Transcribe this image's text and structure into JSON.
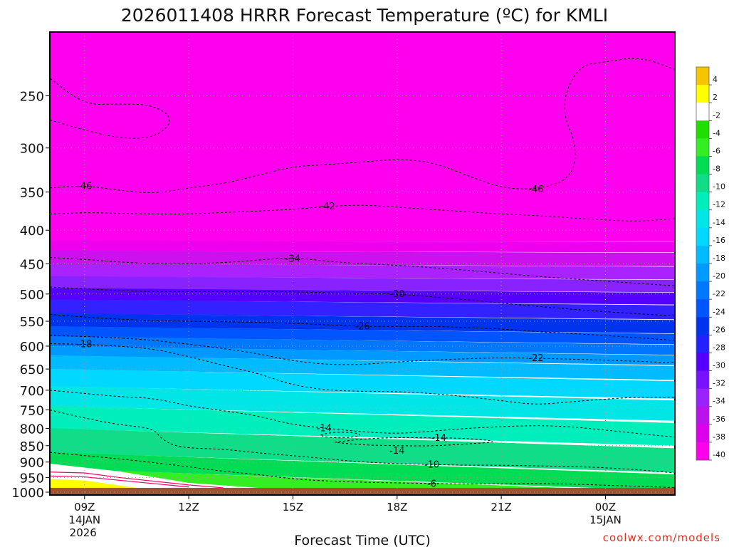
{
  "chart_data": {
    "type": "heatmap",
    "title": "2026011408 HRRR Forecast Temperature (ºC) for KMLI",
    "xlabel": "Forecast Time (UTC)",
    "ylabel": "",
    "units": "ºC",
    "x_ticks": [
      {
        "hour": 9,
        "label": "09Z",
        "date": "14JAN",
        "year": "2026"
      },
      {
        "hour": 12,
        "label": "12Z",
        "date": "",
        "year": ""
      },
      {
        "hour": 15,
        "label": "15Z",
        "date": "",
        "year": ""
      },
      {
        "hour": 18,
        "label": "18Z",
        "date": "",
        "year": ""
      },
      {
        "hour": 21,
        "label": "21Z",
        "date": "",
        "year": ""
      },
      {
        "hour": 24,
        "label": "00Z",
        "date": "15JAN",
        "year": ""
      }
    ],
    "xlim": [
      8,
      26
    ],
    "y_ticks": [
      250,
      300,
      350,
      400,
      450,
      500,
      550,
      600,
      650,
      700,
      750,
      800,
      850,
      900,
      950,
      1000
    ],
    "ylim": [
      200,
      1010
    ],
    "yscale": "log-pressure",
    "ground_pressure": 985,
    "contours": [
      {
        "level": -46,
        "label": "-46",
        "points": [
          [
            8,
            345
          ],
          [
            9,
            342
          ],
          [
            10,
            348
          ],
          [
            11,
            352
          ],
          [
            12,
            345
          ],
          [
            13,
            340
          ],
          [
            14,
            330
          ],
          [
            15,
            320
          ],
          [
            16,
            318
          ],
          [
            17,
            315
          ],
          [
            18,
            312
          ],
          [
            19,
            315
          ],
          [
            20,
            330
          ],
          [
            21,
            345
          ],
          [
            22,
            347
          ],
          [
            23,
            335
          ],
          [
            23.2,
            300
          ],
          [
            22.7,
            260
          ],
          [
            23.2,
            225
          ],
          [
            24,
            222
          ],
          [
            25,
            218
          ],
          [
            26,
            228
          ]
        ],
        "labels_at": [
          [
            9,
            343
          ],
          [
            22,
            347
          ]
        ]
      },
      {
        "level": -42,
        "label": "-42",
        "points": [
          [
            8,
            378
          ],
          [
            9,
            376
          ],
          [
            10,
            377
          ],
          [
            11,
            378
          ],
          [
            12,
            378
          ],
          [
            13,
            376
          ],
          [
            14,
            374
          ],
          [
            15,
            372
          ],
          [
            16,
            368
          ],
          [
            17,
            366
          ],
          [
            18,
            369
          ],
          [
            19,
            372
          ],
          [
            20,
            375
          ],
          [
            21,
            378
          ],
          [
            22,
            380
          ],
          [
            23,
            383
          ],
          [
            24,
            386
          ],
          [
            25,
            388
          ],
          [
            26,
            384
          ]
        ],
        "labels_at": [
          [
            16,
            368
          ]
        ]
      },
      {
        "level": -34,
        "label": "-34",
        "points": [
          [
            8,
            440
          ],
          [
            9,
            443
          ],
          [
            10,
            447
          ],
          [
            11,
            450
          ],
          [
            12,
            450
          ],
          [
            13,
            448
          ],
          [
            14,
            444
          ],
          [
            15,
            440
          ],
          [
            16,
            446
          ],
          [
            17,
            450
          ],
          [
            18,
            452
          ],
          [
            19,
            456
          ],
          [
            20,
            460
          ],
          [
            21,
            465
          ],
          [
            22,
            470
          ],
          [
            23,
            474
          ],
          [
            24,
            478
          ],
          [
            25,
            482
          ],
          [
            26,
            486
          ]
        ],
        "labels_at": [
          [
            15,
            442
          ]
        ]
      },
      {
        "level": -30,
        "label": "-30",
        "points": [
          [
            8,
            488
          ],
          [
            9,
            491
          ],
          [
            10,
            494
          ],
          [
            11,
            496
          ],
          [
            12,
            496
          ],
          [
            13,
            496
          ],
          [
            14,
            496
          ],
          [
            15,
            496
          ],
          [
            16,
            498
          ],
          [
            17,
            499
          ],
          [
            18,
            500
          ],
          [
            19,
            505
          ],
          [
            20,
            510
          ],
          [
            21,
            516
          ],
          [
            22,
            522
          ],
          [
            23,
            527
          ],
          [
            24,
            532
          ],
          [
            25,
            536
          ],
          [
            26,
            540
          ]
        ],
        "labels_at": [
          [
            18,
            500
          ]
        ]
      },
      {
        "level": -26,
        "label": "-26",
        "points": [
          [
            8,
            537
          ],
          [
            9,
            542
          ],
          [
            10,
            546
          ],
          [
            11,
            549
          ],
          [
            12,
            550
          ],
          [
            13,
            551
          ],
          [
            14,
            552
          ],
          [
            15,
            554
          ],
          [
            16,
            557
          ],
          [
            17,
            560
          ],
          [
            18,
            560
          ],
          [
            19,
            560
          ],
          [
            20,
            562
          ],
          [
            21,
            565
          ],
          [
            22,
            570
          ],
          [
            23,
            574
          ],
          [
            24,
            578
          ],
          [
            25,
            583
          ],
          [
            26,
            588
          ]
        ],
        "labels_at": [
          [
            17,
            560
          ]
        ]
      },
      {
        "level": -22,
        "label": "-22",
        "points": [
          [
            8,
            578
          ],
          [
            9,
            580
          ],
          [
            10,
            583
          ],
          [
            11,
            588
          ],
          [
            12,
            596
          ],
          [
            13,
            605
          ],
          [
            14,
            616
          ],
          [
            15,
            632
          ],
          [
            16,
            640
          ],
          [
            17,
            640
          ],
          [
            18,
            634
          ],
          [
            19,
            630
          ],
          [
            20,
            627
          ],
          [
            21,
            625
          ],
          [
            22,
            626
          ],
          [
            23,
            628
          ],
          [
            24,
            630
          ],
          [
            25,
            633
          ],
          [
            26,
            636
          ]
        ],
        "labels_at": [
          [
            22,
            626
          ]
        ]
      },
      {
        "level": -18,
        "label": "-18",
        "points": [
          [
            8,
            595
          ],
          [
            9,
            596
          ],
          [
            10,
            600
          ],
          [
            11,
            606
          ],
          [
            12,
            622
          ],
          [
            13,
            642
          ],
          [
            14,
            660
          ],
          [
            15,
            688
          ],
          [
            16,
            700
          ],
          [
            17,
            703
          ],
          [
            18,
            703
          ],
          [
            19,
            708
          ],
          [
            20,
            716
          ],
          [
            21,
            726
          ],
          [
            22,
            737
          ],
          [
            23,
            729
          ],
          [
            24,
            722
          ],
          [
            25,
            717
          ],
          [
            26,
            718
          ]
        ],
        "labels_at": [
          [
            9,
            596
          ]
        ]
      },
      {
        "level": -14,
        "label": "-14",
        "points": [
          [
            8,
            700
          ],
          [
            9,
            708
          ],
          [
            10,
            716
          ],
          [
            11,
            720
          ],
          [
            12,
            740
          ],
          [
            13,
            752
          ],
          [
            14,
            766
          ],
          [
            15,
            790
          ],
          [
            16,
            800
          ],
          [
            17,
            810
          ],
          [
            18,
            815
          ],
          [
            19,
            808
          ],
          [
            20,
            800
          ],
          [
            21,
            795
          ],
          [
            22,
            792
          ],
          [
            23,
            795
          ],
          [
            24,
            805
          ],
          [
            25,
            815
          ],
          [
            26,
            825
          ]
        ],
        "labels_at": [
          [
            15.9,
            800
          ]
        ]
      },
      {
        "level": -10,
        "label": "-10",
        "points": [
          [
            8,
            750
          ],
          [
            9,
            772
          ],
          [
            10,
            790
          ],
          [
            11,
            800
          ],
          [
            11.2,
            830
          ],
          [
            11.7,
            856
          ],
          [
            13,
            860
          ],
          [
            14,
            872
          ],
          [
            15,
            880
          ],
          [
            16,
            890
          ],
          [
            17,
            900
          ],
          [
            18,
            905
          ],
          [
            19,
            908
          ],
          [
            20,
            910
          ],
          [
            21,
            910
          ],
          [
            22,
            912
          ],
          [
            23,
            914
          ],
          [
            24,
            918
          ],
          [
            25,
            925
          ],
          [
            26,
            935
          ]
        ],
        "labels_at": [
          [
            19,
            908
          ]
        ]
      },
      {
        "level": -6,
        "label": "-6",
        "points": [
          [
            8,
            870
          ],
          [
            9,
            880
          ],
          [
            10,
            890
          ],
          [
            11,
            902
          ],
          [
            12,
            915
          ],
          [
            13,
            930
          ],
          [
            14,
            940
          ],
          [
            15,
            955
          ],
          [
            16,
            962
          ],
          [
            17,
            966
          ],
          [
            18,
            968
          ],
          [
            19,
            970
          ],
          [
            20,
            972
          ],
          [
            21,
            971
          ],
          [
            22,
            970
          ],
          [
            23,
            972
          ],
          [
            24,
            976
          ],
          [
            25,
            980
          ],
          [
            26,
            984
          ]
        ],
        "labels_at": [
          [
            19,
            972
          ]
        ]
      },
      {
        "level": -14,
        "label": "-14",
        "points": [
          [
            15.8,
            818
          ],
          [
            16.2,
            810
          ],
          [
            16.8,
            812
          ],
          [
            17,
            820
          ],
          [
            16.5,
            828
          ],
          [
            15.9,
            825
          ],
          [
            15.8,
            818
          ]
        ],
        "labels_at": [],
        "closed": true
      },
      {
        "level": -14,
        "label": "-14",
        "points": [
          [
            16.2,
            840
          ],
          [
            17,
            830
          ],
          [
            18,
            826
          ],
          [
            19,
            827
          ],
          [
            20,
            828
          ],
          [
            21,
            838
          ],
          [
            20,
            845
          ],
          [
            19,
            851
          ],
          [
            18,
            850
          ],
          [
            17,
            848
          ],
          [
            16.2,
            840
          ]
        ],
        "labels_at": [
          [
            19.2,
            828
          ],
          [
            18,
            865
          ]
        ],
        "closed": true
      },
      {
        "level": -46,
        "label": "",
        "points": [
          [
            8,
            272
          ],
          [
            9,
            282
          ],
          [
            10,
            290
          ],
          [
            11,
            290
          ],
          [
            11.6,
            272
          ],
          [
            11,
            258
          ],
          [
            10,
            257
          ],
          [
            9,
            258
          ],
          [
            8,
            235
          ]
        ],
        "labels_at": [],
        "closed": false
      }
    ],
    "colorbar": {
      "levels": [
        4,
        2,
        -2,
        -4,
        -6,
        -8,
        -10,
        -12,
        -14,
        -16,
        -18,
        -20,
        -22,
        -24,
        -26,
        -28,
        -30,
        -32,
        -34,
        -36,
        -38,
        -40
      ],
      "labels": [
        "4",
        "2",
        "-2",
        "-4",
        "-6",
        "-8",
        "-10",
        "-12",
        "-14",
        "-16",
        "-18",
        "-20",
        "-22",
        "-24",
        "-26",
        "-28",
        "-30",
        "-32",
        "-34",
        "-36",
        "-38",
        "-40"
      ],
      "colors": [
        "#f6c400",
        "#ffff00",
        "#ffffff",
        "#22dd00",
        "#33ee22",
        "#00dd55",
        "#11dd88",
        "#00eebb",
        "#00e6e6",
        "#00d8ff",
        "#00bbff",
        "#0099ff",
        "#0077ff",
        "#0055ff",
        "#0033ee",
        "#2222ff",
        "#5500ff",
        "#7711ff",
        "#9922ff",
        "#bb11ee",
        "#dd00ee",
        "#ff00ee"
      ]
    },
    "bands": [
      {
        "from": 200,
        "to": 415,
        "color": "#ff00ee",
        "label": "< -40"
      },
      {
        "from": 415,
        "to": 430,
        "color": "#ee00ee"
      },
      {
        "from": 430,
        "to": 450,
        "color": "#cc11ee"
      },
      {
        "from": 450,
        "to": 470,
        "color": "#aa22ff"
      },
      {
        "from": 470,
        "to": 490,
        "color": "#8822ff"
      },
      {
        "from": 490,
        "to": 510,
        "color": "#5500ff"
      },
      {
        "from": 510,
        "to": 535,
        "color": "#3322ff"
      },
      {
        "from": 535,
        "to": 560,
        "color": "#0033ee"
      },
      {
        "from": 560,
        "to": 580,
        "color": "#0055ff"
      },
      {
        "from": 580,
        "to": 600,
        "color": "#0077ff"
      },
      {
        "from": 600,
        "to": 620,
        "color": "#0099ff"
      },
      {
        "from": 620,
        "to": 650,
        "color": "#00bbff"
      },
      {
        "from": 650,
        "to": 690,
        "color": "#00d8ff"
      },
      {
        "from": 690,
        "to": 740,
        "color": "#00e6e6"
      },
      {
        "from": 740,
        "to": 800,
        "color": "#00eebb"
      },
      {
        "from": 800,
        "to": 870,
        "color": "#11dd88"
      },
      {
        "from": 870,
        "to": 920,
        "color": "#00dd55"
      },
      {
        "from": 920,
        "to": 960,
        "color": "#33ee22"
      },
      {
        "from": 960,
        "to": 985,
        "color": "#22dd00"
      }
    ],
    "band_tilt_hours": 18,
    "near_surface_warm_layer": {
      "description_colors": [
        "#ffffff",
        "#ffff00"
      ],
      "pressure_top": 960
    }
  },
  "credit": "coolwx.com/models",
  "colors": {
    "ground": "#a0522d",
    "frame": "#000000",
    "gridline": "#9a9a9a",
    "contour": "#000000",
    "credit": "#e0301e"
  }
}
